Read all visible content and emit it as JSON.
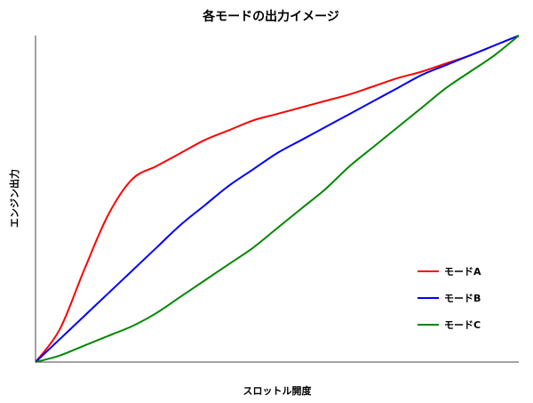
{
  "chart_data": {
    "type": "line",
    "title": "各モードの出力イメージ",
    "xlabel": "スロットル開度",
    "ylabel": "エンジン出力",
    "xlim": [
      0,
      1
    ],
    "ylim": [
      0,
      1
    ],
    "grid": false,
    "x_ticks_shown": false,
    "y_ticks_shown": false,
    "legend_position": "lower-right",
    "x": [
      0,
      0.05,
      0.1,
      0.15,
      0.2,
      0.25,
      0.3,
      0.35,
      0.4,
      0.45,
      0.5,
      0.55,
      0.6,
      0.65,
      0.7,
      0.75,
      0.8,
      0.85,
      0.9,
      0.95,
      1.0
    ],
    "series": [
      {
        "name": "モードA",
        "color": "#ff0000",
        "values": [
          0,
          0.1,
          0.28,
          0.45,
          0.56,
          0.6,
          0.64,
          0.68,
          0.71,
          0.74,
          0.76,
          0.78,
          0.8,
          0.82,
          0.845,
          0.87,
          0.89,
          0.915,
          0.94,
          0.97,
          1.0
        ]
      },
      {
        "name": "モードB",
        "color": "#0000ff",
        "values": [
          0,
          0.07,
          0.14,
          0.21,
          0.28,
          0.35,
          0.42,
          0.48,
          0.54,
          0.59,
          0.64,
          0.68,
          0.72,
          0.76,
          0.8,
          0.84,
          0.88,
          0.91,
          0.94,
          0.97,
          1.0
        ]
      },
      {
        "name": "モードC",
        "color": "#008800",
        "values": [
          0,
          0.02,
          0.05,
          0.08,
          0.11,
          0.15,
          0.2,
          0.25,
          0.3,
          0.35,
          0.41,
          0.47,
          0.53,
          0.6,
          0.66,
          0.72,
          0.78,
          0.84,
          0.89,
          0.94,
          1.0
        ]
      }
    ]
  }
}
